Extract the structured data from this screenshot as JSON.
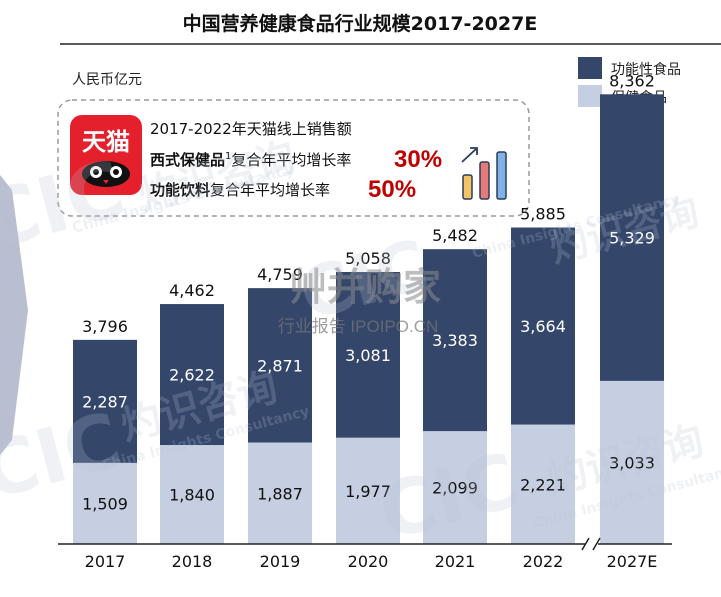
{
  "chart_data": {
    "type": "bar",
    "stacked": true,
    "title": "中国营养健康食品行业规模2017-2027E",
    "unit_label": "人民币亿元",
    "categories": [
      "2017",
      "2018",
      "2019",
      "2020",
      "2021",
      "2022",
      "2027E"
    ],
    "series": [
      {
        "name": "保健食品",
        "values": [
          1509,
          1840,
          1887,
          1977,
          2099,
          2221,
          3033
        ],
        "color": "#c6cfe2"
      },
      {
        "name": "功能性食品",
        "values": [
          2287,
          2622,
          2871,
          3081,
          3383,
          3664,
          5329
        ],
        "color": "#34476b"
      }
    ],
    "totals": [
      3796,
      4462,
      4759,
      5058,
      5482,
      5885,
      8362
    ],
    "ylim": [
      0,
      9000
    ],
    "grid": false,
    "legend_position": "top-right",
    "axis_break_before": "2027E",
    "annotation": {
      "line1": "2017-2022年天猫线上销售额",
      "line2_bold": "西式保健品",
      "line2_sup": "1",
      "line2_rest": "复合年平均增长率",
      "line2_pct": "30%",
      "line3_bold": "功能饮料",
      "line3_rest": "复合年平均增长率",
      "line3_pct": "50%",
      "logo_text": "天猫"
    }
  },
  "watermarks": {
    "cic": "CIC",
    "cic_cn": "灼识咨询",
    "cic_en": "China Insights Consultancy",
    "site_cn": "艸并购家",
    "site_sub": "行业报告 IPOIPO.CN"
  },
  "colors": {
    "dark": "#34476b",
    "light": "#c6cfe2",
    "accent_red": "#c00000"
  }
}
